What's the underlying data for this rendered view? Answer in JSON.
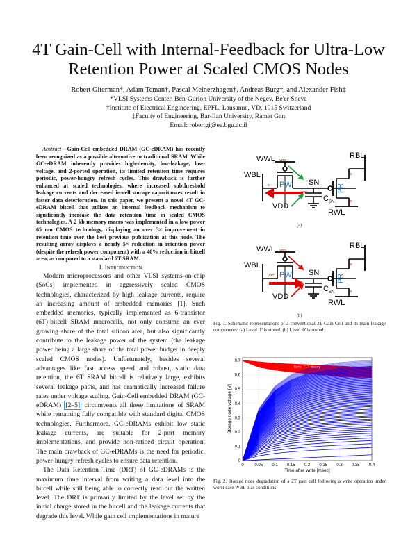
{
  "title": {
    "line1": "4T Gain-Cell with Internal-Feedback for Ultra-Low",
    "line2": "Retention Power at Scaled CMOS Nodes"
  },
  "authors": {
    "names": "Robert Giterman*, Adam Teman†, Pascal Meinerzhagen†, Andreas Burg†, and Alexander Fish‡",
    "affil1": "*VLSI Systems Center, Ben-Gurion University of the Negev, Be'er Sheva",
    "affil2": "†Institute of Electrical Engineering, EPFL, Lausanne, VD, 1015 Switzerland",
    "affil3": "‡Faculty of Engineering, Bar-Ilan University, Ramat Gan",
    "email": "Email: robertgi@ee.bgu.ac.il"
  },
  "abstract": {
    "label": "Abstract",
    "text": "—Gain-Cell embedded DRAM (GC-eDRAM) has recently been recognized as a possible alternative to traditional SRAM. While GC-eDRAM inherently provides high-density, low-leakage, low-voltage, and 2-ported operation, its limited retention time requires periodic, power-hungry refresh cycles. This drawback is further enhanced at scaled technologies, where increased subthreshold leakage currents and decreased in-cell storage capacitances result in faster data deterioration. In this paper, we present a novel 4T GC-eDRAM bitcell that utilizes an internal feedback mechanism to significantly increase the data retention time in scaled CMOS technologies. A 2 kb memory macro was implemented in a low-power 65 nm CMOS technology, displaying an over 3× improvement in retention time over the best previous publication at this node. The resulting array displays a nearly 5× reduction in retention power (despite the refresh power component) with a 40% reduction in bitcell area, as compared to a standard 6T SRAM."
  },
  "intro": {
    "heading": "I. Introduction",
    "p1a": "Modern microprocessors and other VLSI systems-on-chip (SoCs) implemented in aggressively scaled CMOS technologies, characterized by high leakage currents, require an increasing amount of embedded memories [1]. Such embedded memories, typically implemented as 6-transistor (6T)-bitcell SRAM macrocells, not only consume an ever growing share of the total silicon area, but also significantly contribute to the leakage power of the system (the leakage power being a large share of the total power budget in deeply scaled CMOS nodes). Unfortunately, besides several advantages like fast access speed and robust, static data retention, the 6T SRAM bitcell is relatively large, exhibits several leakage paths, and has dramatically increased failure rates under voltage scaling. Gain-Cell embedded DRAM (GC-eDRAM) ",
    "p1cite": "[2–5]",
    "p1b": " circumvents all these limitations of SRAM while remaining fully compatible with standard digital CMOS technologies. Furthermore, GC-eDRAMs exhibit low static leakage currents, are suitable for 2-port memory implementations, and provide non-ratioed circuit operation. The main drawback of GC-eDRAMs is the need for periodic, power-hungry refresh cycles to ensure data retention.",
    "p2": "The Data Retention Time (DRT) of GC-eDRAMs is the maximum time interval from writing a data level into the bitcell while still being able to correctly read out the written level. The DRT is primarily limited by the level set by the initial charge stored in the bitcell and the leakage currents that degrade this level. While gain cell implementations in mature"
  },
  "fig1": {
    "a": {
      "wwl": "WWL",
      "wwl_v": "VDD",
      "wbl": "WBL",
      "wbl_v": "0",
      "pw": "PW",
      "sn": "SN",
      "sn_v": "VDD",
      "vdd": "VDD",
      "csn": "C",
      "csn_sub": "SN",
      "rbl": "RBL",
      "pr": "PR",
      "pr_top": "0",
      "pr_bot": "0",
      "rwl": "RWL",
      "label": "(a)"
    },
    "b": {
      "wwl": "WWL",
      "wwl_v": "VDD",
      "wbl": "WBL",
      "wbl_v": "VDD",
      "pw": "PW",
      "sn": "SN",
      "sn_v": "0",
      "vdd": "VDD",
      "csn": "C",
      "csn_sub": "SN",
      "rbl": "RBL",
      "pr": "PR",
      "pr_top": "0",
      "pr_bot": "0",
      "rwl": "RWL",
      "label": "(b)"
    },
    "caption": "Fig. 1.   Schematic representations of a conventional 2T Gain-Cell and its main leakage components: (a) Level '1' is stored. (b) Level '0' is stored.",
    "colors": {
      "write_leak": "#1e9a3c",
      "red": "#e00000",
      "pw_text": "#1f78c8"
    }
  },
  "fig2": {
    "caption": "Fig. 2.   Storage node degradation of a 2T gain cell following a write operation under worst case WBL bias conditions."
  },
  "chart_data": {
    "type": "line",
    "xlabel": "Time after write [msec]",
    "ylabel": "Storage node voltage [V]",
    "xlim": [
      0,
      0.4
    ],
    "ylim": [
      0,
      0.72
    ],
    "xticks": [
      "0",
      "0.05",
      "0.1",
      "0.15",
      "0.2",
      "0.25",
      "0.3",
      "0.35",
      "0.4"
    ],
    "yticks": [
      "0",
      "0.1",
      "0.2",
      "0.3",
      "0.4",
      "0.5",
      "0.6",
      "0.7"
    ],
    "grid": true,
    "x": [
      0,
      0.05,
      0.1,
      0.15,
      0.2,
      0.25,
      0.3,
      0.35,
      0.4
    ],
    "series": [
      {
        "name": "Data '1' decay",
        "color": "#ff0000",
        "upper": [
          0.7,
          0.69,
          0.68,
          0.675,
          0.67,
          0.665,
          0.66,
          0.655,
          0.65
        ],
        "lower": [
          0.7,
          0.655,
          0.635,
          0.62,
          0.61,
          0.6,
          0.59,
          0.585,
          0.58
        ]
      },
      {
        "name": "Data '0 decay",
        "color": "#0000ff",
        "upper": [
          0,
          0.36,
          0.52,
          0.6,
          0.645,
          0.67,
          0.685,
          0.695,
          0.7
        ],
        "lower": [
          0,
          0.005,
          0.01,
          0.015,
          0.02,
          0.025,
          0.03,
          0.035,
          0.04
        ]
      }
    ]
  }
}
